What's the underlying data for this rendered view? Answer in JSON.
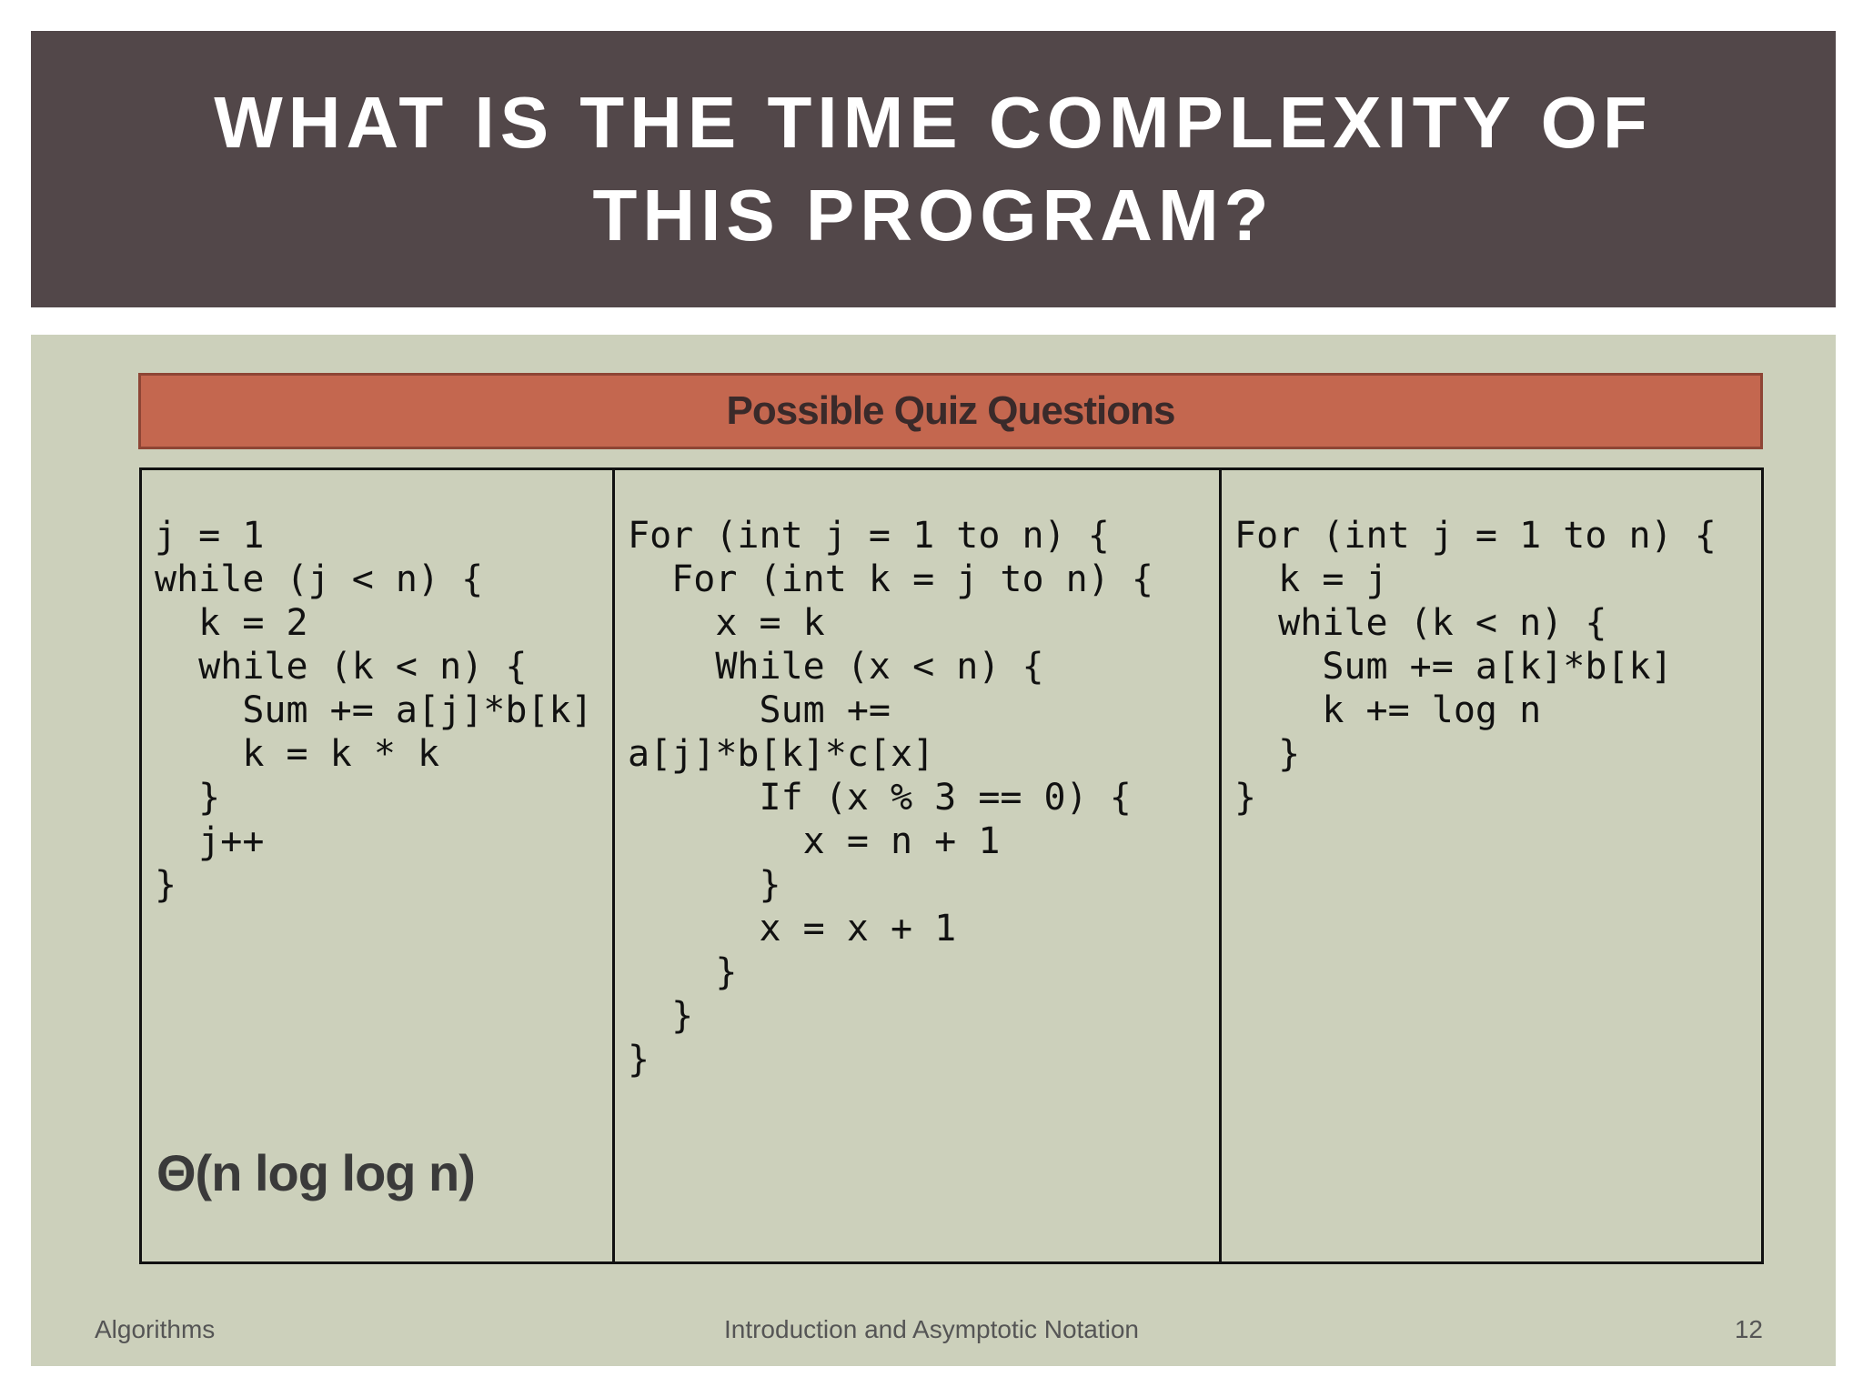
{
  "slide": {
    "title": "WHAT IS THE TIME COMPLEXITY OF THIS PROGRAM?",
    "quiz_header": "Possible Quiz Questions",
    "columns": [
      {
        "code": "j = 1\nwhile (j < n) {\n  k = 2\n  while (k < n) {\n    Sum += a[j]*b[k]\n    k = k * k\n  }\n  j++\n}",
        "answer": "Θ(n log log n)"
      },
      {
        "code": "For (int j = 1 to n) {\n  For (int k = j to n) {\n    x = k\n    While (x < n) {\n      Sum +=\na[j]*b[k]*c[x]\n      If (x % 3 == 0) {\n        x = n + 1\n      }\n      x = x + 1\n    }\n  }\n}"
      },
      {
        "code": "For (int j = 1 to n) {\n  k = j\n  while (k < n) {\n    Sum += a[k]*b[k]\n    k += log n\n  }\n}"
      }
    ],
    "footer": {
      "left": "Algorithms",
      "center": "Introduction and Asymptotic Notation",
      "page_number": "12"
    }
  },
  "colors": {
    "title_band": "#524749",
    "body_background": "#ccd0bb",
    "quiz_header": "#c4674f"
  }
}
